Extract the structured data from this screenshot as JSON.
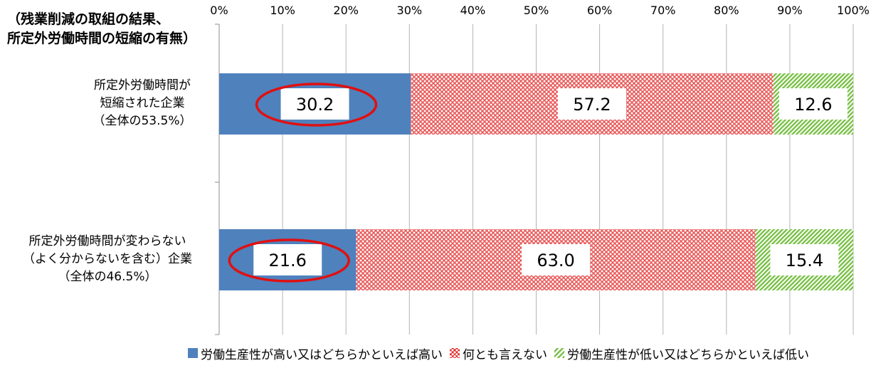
{
  "corner_label": [
    "（残業削減の取組の結果、",
    "所定外労働時間の短縮の有無）"
  ],
  "colors": {
    "high": "#4f81bd",
    "neutral": "#e85a5a",
    "low": "#7cc24a",
    "highlight_ring": "#e01010"
  },
  "chart_data": {
    "type": "bar",
    "orientation": "horizontal",
    "stacked": true,
    "percent_scale": true,
    "title": "",
    "categories": [
      [
        "所定外労働時間が",
        "短縮された企業",
        "（全体の53.5%）"
      ],
      [
        "所定外労働時間が変わらない",
        "（よく分からないを含む）企業",
        "（全体の46.5%）"
      ]
    ],
    "series": [
      {
        "name": "労働生産性が高い又はどちらかといえば高い",
        "values": [
          30.2,
          21.6
        ],
        "labels": [
          "30.2",
          "21.6"
        ],
        "pattern": "solid"
      },
      {
        "name": "何とも言えない",
        "values": [
          57.2,
          63.0
        ],
        "labels": [
          "57.2",
          "63.0"
        ],
        "pattern": "crosshatch"
      },
      {
        "name": "労働生産性が低い又はどちらかといえば低い",
        "values": [
          12.6,
          15.4
        ],
        "labels": [
          "12.6",
          "15.4"
        ],
        "pattern": "diagonal"
      }
    ],
    "xlim": [
      0,
      100
    ],
    "xticks": [
      "0%",
      "10%",
      "20%",
      "30%",
      "40%",
      "50%",
      "60%",
      "70%",
      "80%",
      "90%",
      "100%"
    ],
    "grid": true,
    "legend_position": "bottom",
    "highlighted_series": "労働生産性が高い又はどちらかといえば高い"
  }
}
